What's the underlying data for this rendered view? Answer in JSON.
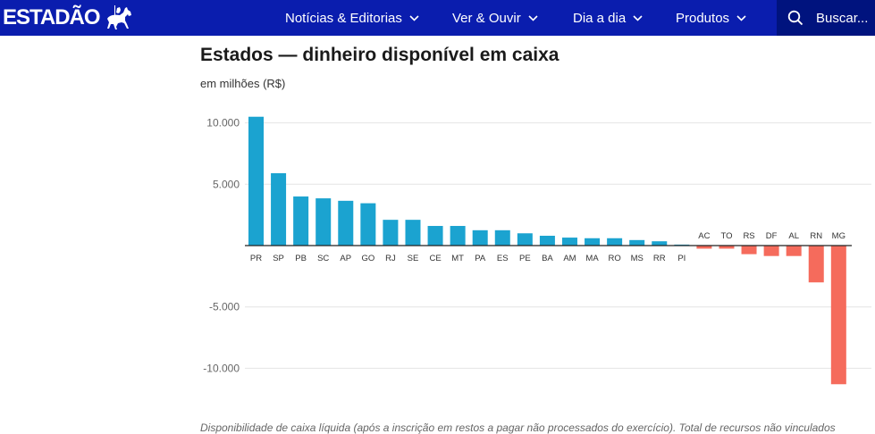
{
  "header": {
    "brand": "ESTADÃO",
    "nav": [
      {
        "label": "Notícias & Editorias"
      },
      {
        "label": "Ver & Ouvir"
      },
      {
        "label": "Dia a dia"
      },
      {
        "label": "Produtos"
      }
    ],
    "search_label": "Buscar..."
  },
  "colors": {
    "header_bg": "#0a1dae",
    "positive": "#1ba3d0",
    "negative": "#f56b5c"
  },
  "chart_data": {
    "type": "bar",
    "title": "Estados — dinheiro disponível em caixa",
    "subtitle": "em milhões (R$)",
    "ylim": [
      -11500,
      11000
    ],
    "yticks": [
      10000,
      5000,
      -5000,
      -10000
    ],
    "ytick_labels": [
      "10.000",
      "5.000",
      "-5.000",
      "-10.000"
    ],
    "categories": [
      "PR",
      "SP",
      "PB",
      "SC",
      "AP",
      "GO",
      "RJ",
      "SE",
      "CE",
      "MT",
      "PA",
      "ES",
      "PE",
      "BA",
      "AM",
      "MA",
      "RO",
      "MS",
      "RR",
      "PI",
      "AC",
      "TO",
      "RS",
      "DF",
      "AL",
      "RN",
      "MG"
    ],
    "values": [
      10500,
      5900,
      4000,
      3850,
      3650,
      3450,
      2100,
      2100,
      1600,
      1600,
      1250,
      1250,
      1000,
      800,
      650,
      600,
      600,
      450,
      350,
      80,
      -250,
      -250,
      -700,
      -850,
      -850,
      -3000,
      -11300
    ]
  },
  "footnote": "Disponibilidade de caixa líquida (após a inscrição em restos a pagar não processados do exercício). Total de recursos não vinculados"
}
